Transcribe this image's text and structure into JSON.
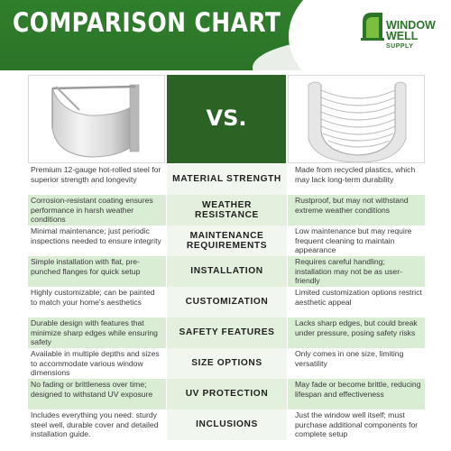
{
  "header": {
    "title": "COMPARISON CHART",
    "logo": {
      "line1": "WINDOW",
      "line2": "WELL",
      "sub": "SUPPLY"
    }
  },
  "comparison": {
    "vs_label": "VS.",
    "rows": [
      {
        "feature": "MATERIAL STRENGTH",
        "left": "Premium 12-gauge hot-rolled steel for superior strength and longevity",
        "right": "Made from recycled plastics, which may lack long-term durability"
      },
      {
        "feature": "WEATHER RESISTANCE",
        "left": "Corrosion-resistant coating ensures performance in harsh weather conditions",
        "right": "Rustproof, but may not withstand extreme weather conditions"
      },
      {
        "feature": "MAINTENANCE REQUIREMENTS",
        "left": "Minimal maintenance; just periodic inspections needed to ensure integrity",
        "right": "Low maintenance but may require frequent cleaning to maintain appearance"
      },
      {
        "feature": "INSTALLATION",
        "left": "Simple installation with flat, pre-punched flanges for quick setup",
        "right": "Requires careful handling; installation may not be as user-friendly"
      },
      {
        "feature": "CUSTOMIZATION",
        "left": "Highly customizable; can be painted to match your home's aesthetics",
        "right": "Limited customization options restrict aesthetic appeal"
      },
      {
        "feature": "SAFETY FEATURES",
        "left": "Durable design with features that minimize sharp edges while ensuring safety",
        "right": "Lacks sharp edges, but could break under pressure, posing safety risks"
      },
      {
        "feature": "SIZE OPTIONS",
        "left": "Available in multiple depths and sizes to accommodate various window dimensions",
        "right": "Only comes in one size, limiting versatility"
      },
      {
        "feature": "UV PROTECTION",
        "left": "No fading or brittleness over time; designed to withstand UV exposure",
        "right": "May fade or become brittle, reducing lifespan and effectiveness"
      },
      {
        "feature": "INCLUSIONS",
        "left": "Includes everything you need: sturdy steel well, durable cover and detailed installation guide.",
        "right": "Just the window well itself; must purchase additional components for complete setup"
      }
    ]
  },
  "colors": {
    "brand_green": "#2b7428",
    "vs_dark_green": "#2b6324",
    "row_green": "#d9ecd4"
  }
}
